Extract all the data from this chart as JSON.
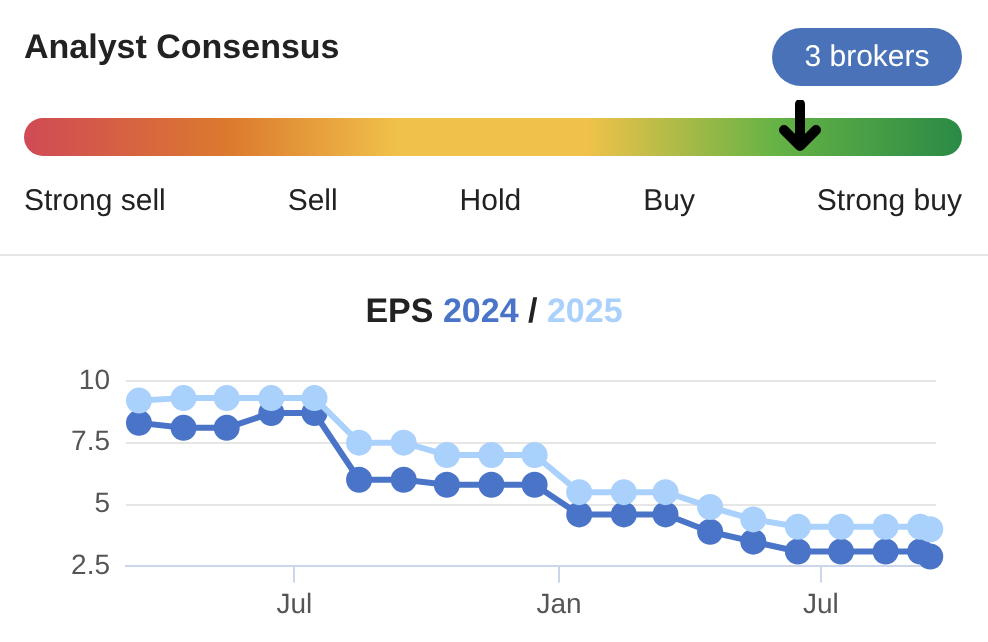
{
  "chart_data": [
    {
      "type": "other",
      "title": "Analyst Consensus",
      "categories": [
        "Strong sell",
        "Sell",
        "Hold",
        "Buy",
        "Strong buy"
      ],
      "annotations": [
        "3 brokers"
      ]
    },
    {
      "type": "line",
      "title": "EPS",
      "legend": "top",
      "annotations": [
        "/"
      ],
      "grid": "y",
      "marker": "circle",
      "line_style": "solid",
      "x": [
        "2023-03-15",
        "2023-04-15",
        "2023-05-15",
        "2023-06-15",
        "2023-07-15",
        "2023-08-15",
        "2023-09-15",
        "2023-10-15",
        "2023-11-15",
        "2023-12-15",
        "2024-01-15",
        "2024-02-15",
        "2024-03-15",
        "2024-04-15",
        "2024-05-15",
        "2024-06-15",
        "2024-07-15",
        "2024-08-15",
        "2024-09-08",
        "2024-09-15"
      ],
      "xlim": [
        "2023-03-06",
        "2024-09-19"
      ],
      "xticks": [
        {
          "value": "2023-07-01",
          "label": "Jul"
        },
        {
          "value": "2024-01-01",
          "label": "Jan"
        },
        {
          "value": "2024-07-01",
          "label": "Jul"
        }
      ],
      "ylim": [
        2.5,
        10
      ],
      "yticks": [
        2.5,
        5,
        7.5,
        10
      ],
      "series": [
        {
          "name": "2024",
          "color": "#4a74c8",
          "values": [
            8.3,
            8.1,
            8.1,
            8.7,
            8.7,
            6.0,
            6.0,
            5.8,
            5.8,
            5.8,
            4.6,
            4.6,
            4.6,
            3.9,
            3.5,
            3.1,
            3.1,
            3.1,
            3.1,
            2.9
          ]
        },
        {
          "name": "2025",
          "color": "#a9d1fb",
          "values": [
            9.2,
            9.3,
            9.3,
            9.3,
            9.3,
            7.5,
            7.5,
            7.0,
            7.0,
            7.0,
            5.5,
            5.5,
            5.5,
            4.9,
            4.4,
            4.1,
            4.1,
            4.1,
            4.1,
            4.0
          ]
        }
      ]
    }
  ]
}
